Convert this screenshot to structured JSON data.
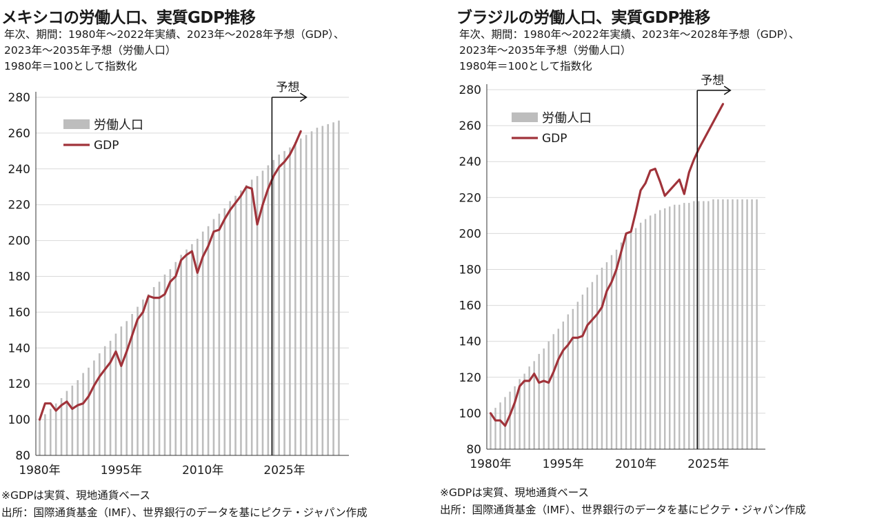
{
  "notes": {
    "line1": "※GDPは実質、現地通貨ベース",
    "line2": "出所：国際通貨基金（IMF）、世界銀行のデータを基にピクテ・ジャパン作成"
  },
  "colors": {
    "labor": "#bdbdbd",
    "gdp": "#a0333a",
    "axis": "#333333",
    "grid": "#d9d9d9"
  },
  "chart_data": [
    {
      "type": "bar",
      "title": "メキシコの労働人口、実質GDP推移",
      "subtitle_lines": [
        "年次、期間：1980年～2022年実績、2023年～2028年予想（GDP）、",
        "2023年～2035年予想（労働人口）",
        "1980年＝100として指数化"
      ],
      "x_tick_labels": [
        "1980年",
        "1995年",
        "2010年",
        "2025年"
      ],
      "x_tick_years": [
        1980,
        1995,
        2010,
        2025
      ],
      "y_ticks": [
        80,
        100,
        120,
        140,
        160,
        180,
        200,
        220,
        240,
        260,
        280
      ],
      "ylim": [
        80,
        280
      ],
      "forecast_label": "予想",
      "forecast_year": 2022.7,
      "legend": {
        "position": "top-left",
        "labor": "労働人口",
        "gdp": "GDP"
      },
      "series": [
        {
          "name": "労働人口",
          "type": "bar",
          "x": [
            1980,
            1981,
            1982,
            1983,
            1984,
            1985,
            1986,
            1987,
            1988,
            1989,
            1990,
            1991,
            1992,
            1993,
            1994,
            1995,
            1996,
            1997,
            1998,
            1999,
            2000,
            2001,
            2002,
            2003,
            2004,
            2005,
            2006,
            2007,
            2008,
            2009,
            2010,
            2011,
            2012,
            2013,
            2014,
            2015,
            2016,
            2017,
            2018,
            2019,
            2020,
            2021,
            2022,
            2023,
            2024,
            2025,
            2026,
            2027,
            2028,
            2029,
            2030,
            2031,
            2032,
            2033,
            2034,
            2035
          ],
          "values": [
            100,
            103,
            106,
            109,
            112,
            116,
            119,
            122,
            126,
            129,
            133,
            137,
            141,
            144,
            148,
            152,
            155,
            159,
            163,
            167,
            170,
            174,
            177,
            181,
            184,
            188,
            192,
            195,
            198,
            201,
            205,
            208,
            212,
            215,
            218,
            222,
            225,
            228,
            231,
            234,
            236,
            239,
            242,
            245,
            248,
            250,
            252,
            255,
            257,
            259,
            261,
            263,
            264,
            265,
            266,
            267
          ]
        },
        {
          "name": "GDP",
          "type": "line",
          "x": [
            1980,
            1981,
            1982,
            1983,
            1984,
            1985,
            1986,
            1987,
            1988,
            1989,
            1990,
            1991,
            1992,
            1993,
            1994,
            1995,
            1996,
            1997,
            1998,
            1999,
            2000,
            2001,
            2002,
            2003,
            2004,
            2005,
            2006,
            2007,
            2008,
            2009,
            2010,
            2011,
            2012,
            2013,
            2014,
            2015,
            2016,
            2017,
            2018,
            2019,
            2020,
            2021,
            2022,
            2023,
            2024,
            2025,
            2026,
            2027,
            2028
          ],
          "values": [
            100,
            109,
            109,
            105,
            108,
            110,
            106,
            108,
            109,
            113,
            119,
            124,
            128,
            132,
            138,
            130,
            138,
            147,
            156,
            160,
            169,
            168,
            168,
            170,
            177,
            180,
            189,
            192,
            194,
            182,
            191,
            197,
            205,
            206,
            212,
            217,
            221,
            225,
            230,
            229,
            209,
            220,
            229,
            236,
            241,
            244,
            248,
            254,
            261
          ]
        }
      ]
    },
    {
      "type": "bar",
      "title": "ブラジルの労働人口、実質GDP推移",
      "subtitle_lines": [
        "年次、期間：1980年～2022年実績、2023年～2028年予想（GDP）、",
        "2023年～2035年予想（労働人口）",
        "1980年＝100として指数化"
      ],
      "x_tick_labels": [
        "1980年",
        "1995年",
        "2010年",
        "2025年"
      ],
      "x_tick_years": [
        1980,
        1995,
        2010,
        2025
      ],
      "y_ticks": [
        80,
        100,
        120,
        140,
        160,
        180,
        200,
        220,
        240,
        260,
        280
      ],
      "ylim": [
        80,
        280
      ],
      "forecast_label": "予想",
      "forecast_year": 2022.7,
      "legend": {
        "position": "top-left",
        "labor": "労働人口",
        "gdp": "GDP"
      },
      "series": [
        {
          "name": "労働人口",
          "type": "bar",
          "x": [
            1980,
            1981,
            1982,
            1983,
            1984,
            1985,
            1986,
            1987,
            1988,
            1989,
            1990,
            1991,
            1992,
            1993,
            1994,
            1995,
            1996,
            1997,
            1998,
            1999,
            2000,
            2001,
            2002,
            2003,
            2004,
            2005,
            2006,
            2007,
            2008,
            2009,
            2010,
            2011,
            2012,
            2013,
            2014,
            2015,
            2016,
            2017,
            2018,
            2019,
            2020,
            2021,
            2022,
            2023,
            2024,
            2025,
            2026,
            2027,
            2028,
            2029,
            2030,
            2031,
            2032,
            2033,
            2034,
            2035
          ],
          "values": [
            100,
            103,
            106,
            109,
            112,
            115,
            119,
            122,
            126,
            129,
            133,
            136,
            140,
            144,
            147,
            151,
            155,
            158,
            162,
            166,
            170,
            173,
            177,
            181,
            184,
            188,
            191,
            195,
            198,
            201,
            203,
            206,
            208,
            210,
            211,
            213,
            214,
            215,
            216,
            216,
            217,
            217,
            218,
            218,
            218,
            218,
            219,
            219,
            219,
            219,
            219,
            219,
            219,
            219,
            219,
            219
          ]
        },
        {
          "name": "GDP",
          "type": "line",
          "x": [
            1980,
            1981,
            1982,
            1983,
            1984,
            1985,
            1986,
            1987,
            1988,
            1989,
            1990,
            1991,
            1992,
            1993,
            1994,
            1995,
            1996,
            1997,
            1998,
            1999,
            2000,
            2001,
            2002,
            2003,
            2004,
            2005,
            2006,
            2007,
            2008,
            2009,
            2010,
            2011,
            2012,
            2013,
            2014,
            2015,
            2016,
            2017,
            2018,
            2019,
            2020,
            2021,
            2022,
            2023,
            2024,
            2025,
            2026,
            2027,
            2028
          ],
          "values": [
            100,
            96,
            96,
            93,
            99,
            106,
            115,
            118,
            118,
            122,
            117,
            118,
            117,
            123,
            130,
            135,
            138,
            142,
            142,
            143,
            149,
            152,
            155,
            159,
            168,
            173,
            180,
            190,
            200,
            201,
            212,
            224,
            228,
            235,
            236,
            229,
            221,
            224,
            227,
            230,
            222,
            234,
            241,
            247,
            252,
            257,
            262,
            267,
            272
          ]
        }
      ]
    }
  ]
}
